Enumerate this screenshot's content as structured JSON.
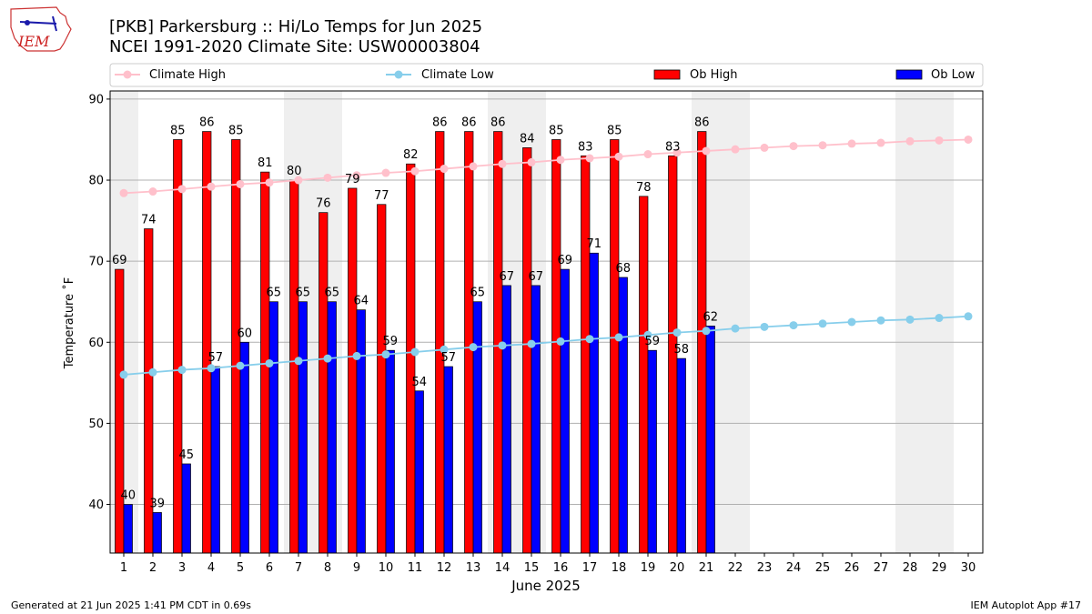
{
  "chart_data": {
    "type": "bar",
    "title_line1": "[PKB] Parkersburg :: Hi/Lo Temps for Jun 2025",
    "title_line2": "NCEI 1991-2020 Climate Site: USW00003804",
    "xlabel": "June 2025",
    "ylabel": "Temperature ˚F",
    "ylim": [
      34,
      91
    ],
    "yticks": [
      40,
      50,
      60,
      70,
      80,
      90
    ],
    "grid": true,
    "legend_position": "top",
    "days": [
      1,
      2,
      3,
      4,
      5,
      6,
      7,
      8,
      9,
      10,
      11,
      12,
      13,
      14,
      15,
      16,
      17,
      18,
      19,
      20,
      21,
      22,
      23,
      24,
      25,
      26,
      27,
      28,
      29,
      30
    ],
    "weekend_days": [
      1,
      7,
      8,
      14,
      15,
      21,
      22,
      28,
      29
    ],
    "series": [
      {
        "name": "Climate High",
        "type": "line",
        "color": "#ffc0cb",
        "values": [
          78.4,
          78.6,
          78.9,
          79.2,
          79.5,
          79.7,
          80.0,
          80.3,
          80.6,
          80.9,
          81.1,
          81.4,
          81.7,
          82.0,
          82.2,
          82.5,
          82.7,
          82.9,
          83.2,
          83.4,
          83.6,
          83.8,
          84.0,
          84.2,
          84.3,
          84.5,
          84.6,
          84.8,
          84.9,
          85.0
        ]
      },
      {
        "name": "Climate Low",
        "type": "line",
        "color": "#87ceeb",
        "values": [
          56.0,
          56.3,
          56.6,
          56.8,
          57.1,
          57.4,
          57.7,
          58.0,
          58.3,
          58.5,
          58.8,
          59.1,
          59.4,
          59.6,
          59.8,
          60.1,
          60.4,
          60.6,
          60.9,
          61.2,
          61.4,
          61.7,
          61.9,
          62.1,
          62.3,
          62.5,
          62.7,
          62.8,
          63.0,
          63.2
        ]
      },
      {
        "name": "Ob High",
        "type": "bar",
        "color": "#ff0000",
        "values": [
          69,
          74,
          85,
          86,
          85,
          81,
          80,
          76,
          79,
          77,
          82,
          86,
          86,
          86,
          84,
          85,
          83,
          85,
          78,
          83,
          86
        ]
      },
      {
        "name": "Ob Low",
        "type": "bar",
        "color": "#0000ff",
        "values": [
          40,
          39,
          45,
          57,
          60,
          65,
          65,
          65,
          64,
          59,
          54,
          57,
          65,
          67,
          67,
          69,
          71,
          68,
          59,
          58,
          62
        ]
      }
    ]
  },
  "logo": {
    "text": "IEM"
  },
  "footer": {
    "generated": "Generated at 21 Jun 2025 1:41 PM CDT in 0.69s",
    "app": "IEM Autoplot App #17"
  },
  "colors": {
    "weekend_shade": "#efefef",
    "grid": "#b0b0b0"
  }
}
